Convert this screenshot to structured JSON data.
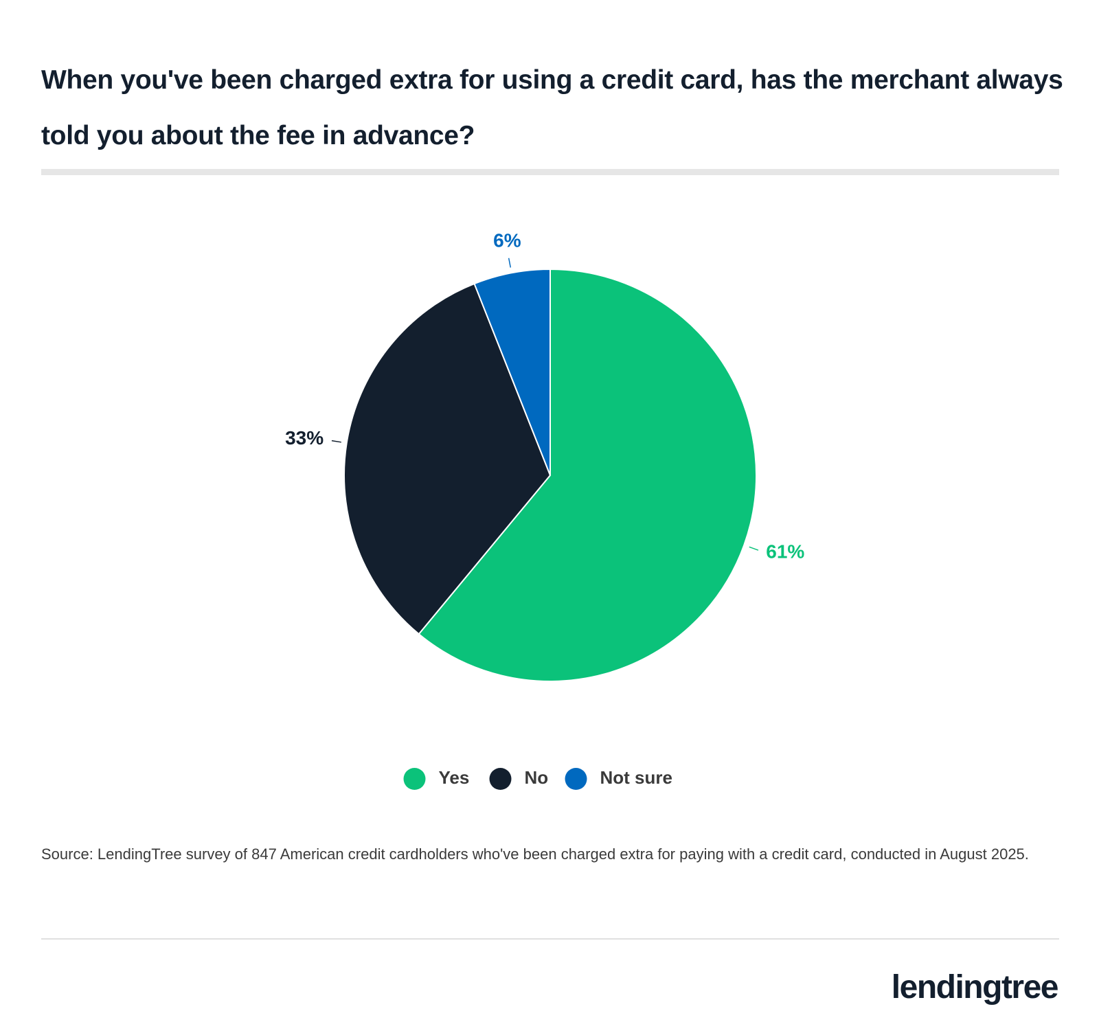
{
  "chart_data": {
    "type": "pie",
    "title": "When you've been charged extra for using a credit card, has the merchant always told you about the fee in advance?",
    "categories": [
      "Yes",
      "No",
      "Not sure"
    ],
    "values": [
      61,
      33,
      6
    ],
    "value_labels": [
      "61%",
      "33%",
      "6%"
    ],
    "colors": [
      "#0bc27a",
      "#131f2e",
      "#0069bf"
    ],
    "legend": "bottom",
    "source": "Source: LendingTree survey of 847 American credit cardholders who've been charged extra for paying with a credit card, conducted in August 2025."
  },
  "logo": "lendingtree"
}
